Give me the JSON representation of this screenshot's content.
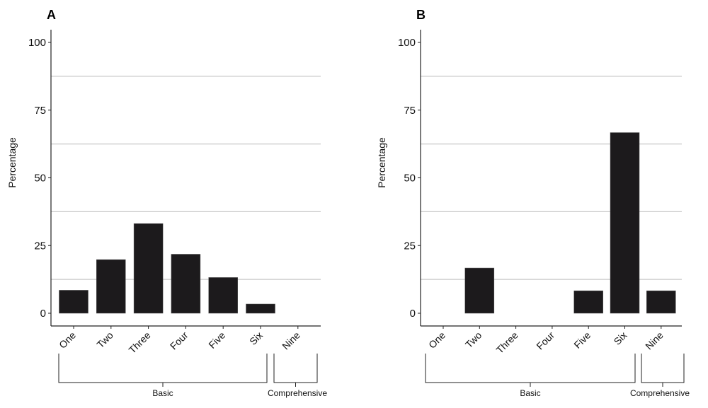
{
  "chart_data": [
    {
      "type": "bar",
      "panel": "A",
      "categories": [
        "One",
        "Two",
        "Three",
        "Four",
        "Five",
        "Six",
        "Nine"
      ],
      "values": [
        8.5,
        19.8,
        33.1,
        21.8,
        13.2,
        3.4,
        0
      ],
      "ylabel": "Percentage",
      "xlabel": "",
      "ylim": [
        0,
        100
      ],
      "yticks": [
        "0",
        "25",
        "50",
        "75",
        "100"
      ],
      "gridlines": [
        12.5,
        37.5,
        62.5,
        87.5
      ],
      "groups": [
        {
          "label": "Basic",
          "from": "One",
          "to": "Six"
        },
        {
          "label": "Comprehensive",
          "from": "Nine",
          "to": "Nine"
        }
      ]
    },
    {
      "type": "bar",
      "panel": "B",
      "categories": [
        "One",
        "Two",
        "Three",
        "Four",
        "Five",
        "Six",
        "Nine"
      ],
      "values": [
        0,
        16.7,
        0,
        0,
        8.3,
        66.7,
        8.3
      ],
      "ylabel": "Percentage",
      "xlabel": "",
      "ylim": [
        0,
        100
      ],
      "yticks": [
        "0",
        "25",
        "50",
        "75",
        "100"
      ],
      "gridlines": [
        12.5,
        37.5,
        62.5,
        87.5
      ],
      "groups": [
        {
          "label": "Basic",
          "from": "One",
          "to": "Six"
        },
        {
          "label": "Comprehensive",
          "from": "Nine",
          "to": "Nine"
        }
      ]
    }
  ],
  "colors": {
    "bar": "#1c1a1c",
    "grid": "#c8c8c8",
    "axis": "#222222"
  }
}
